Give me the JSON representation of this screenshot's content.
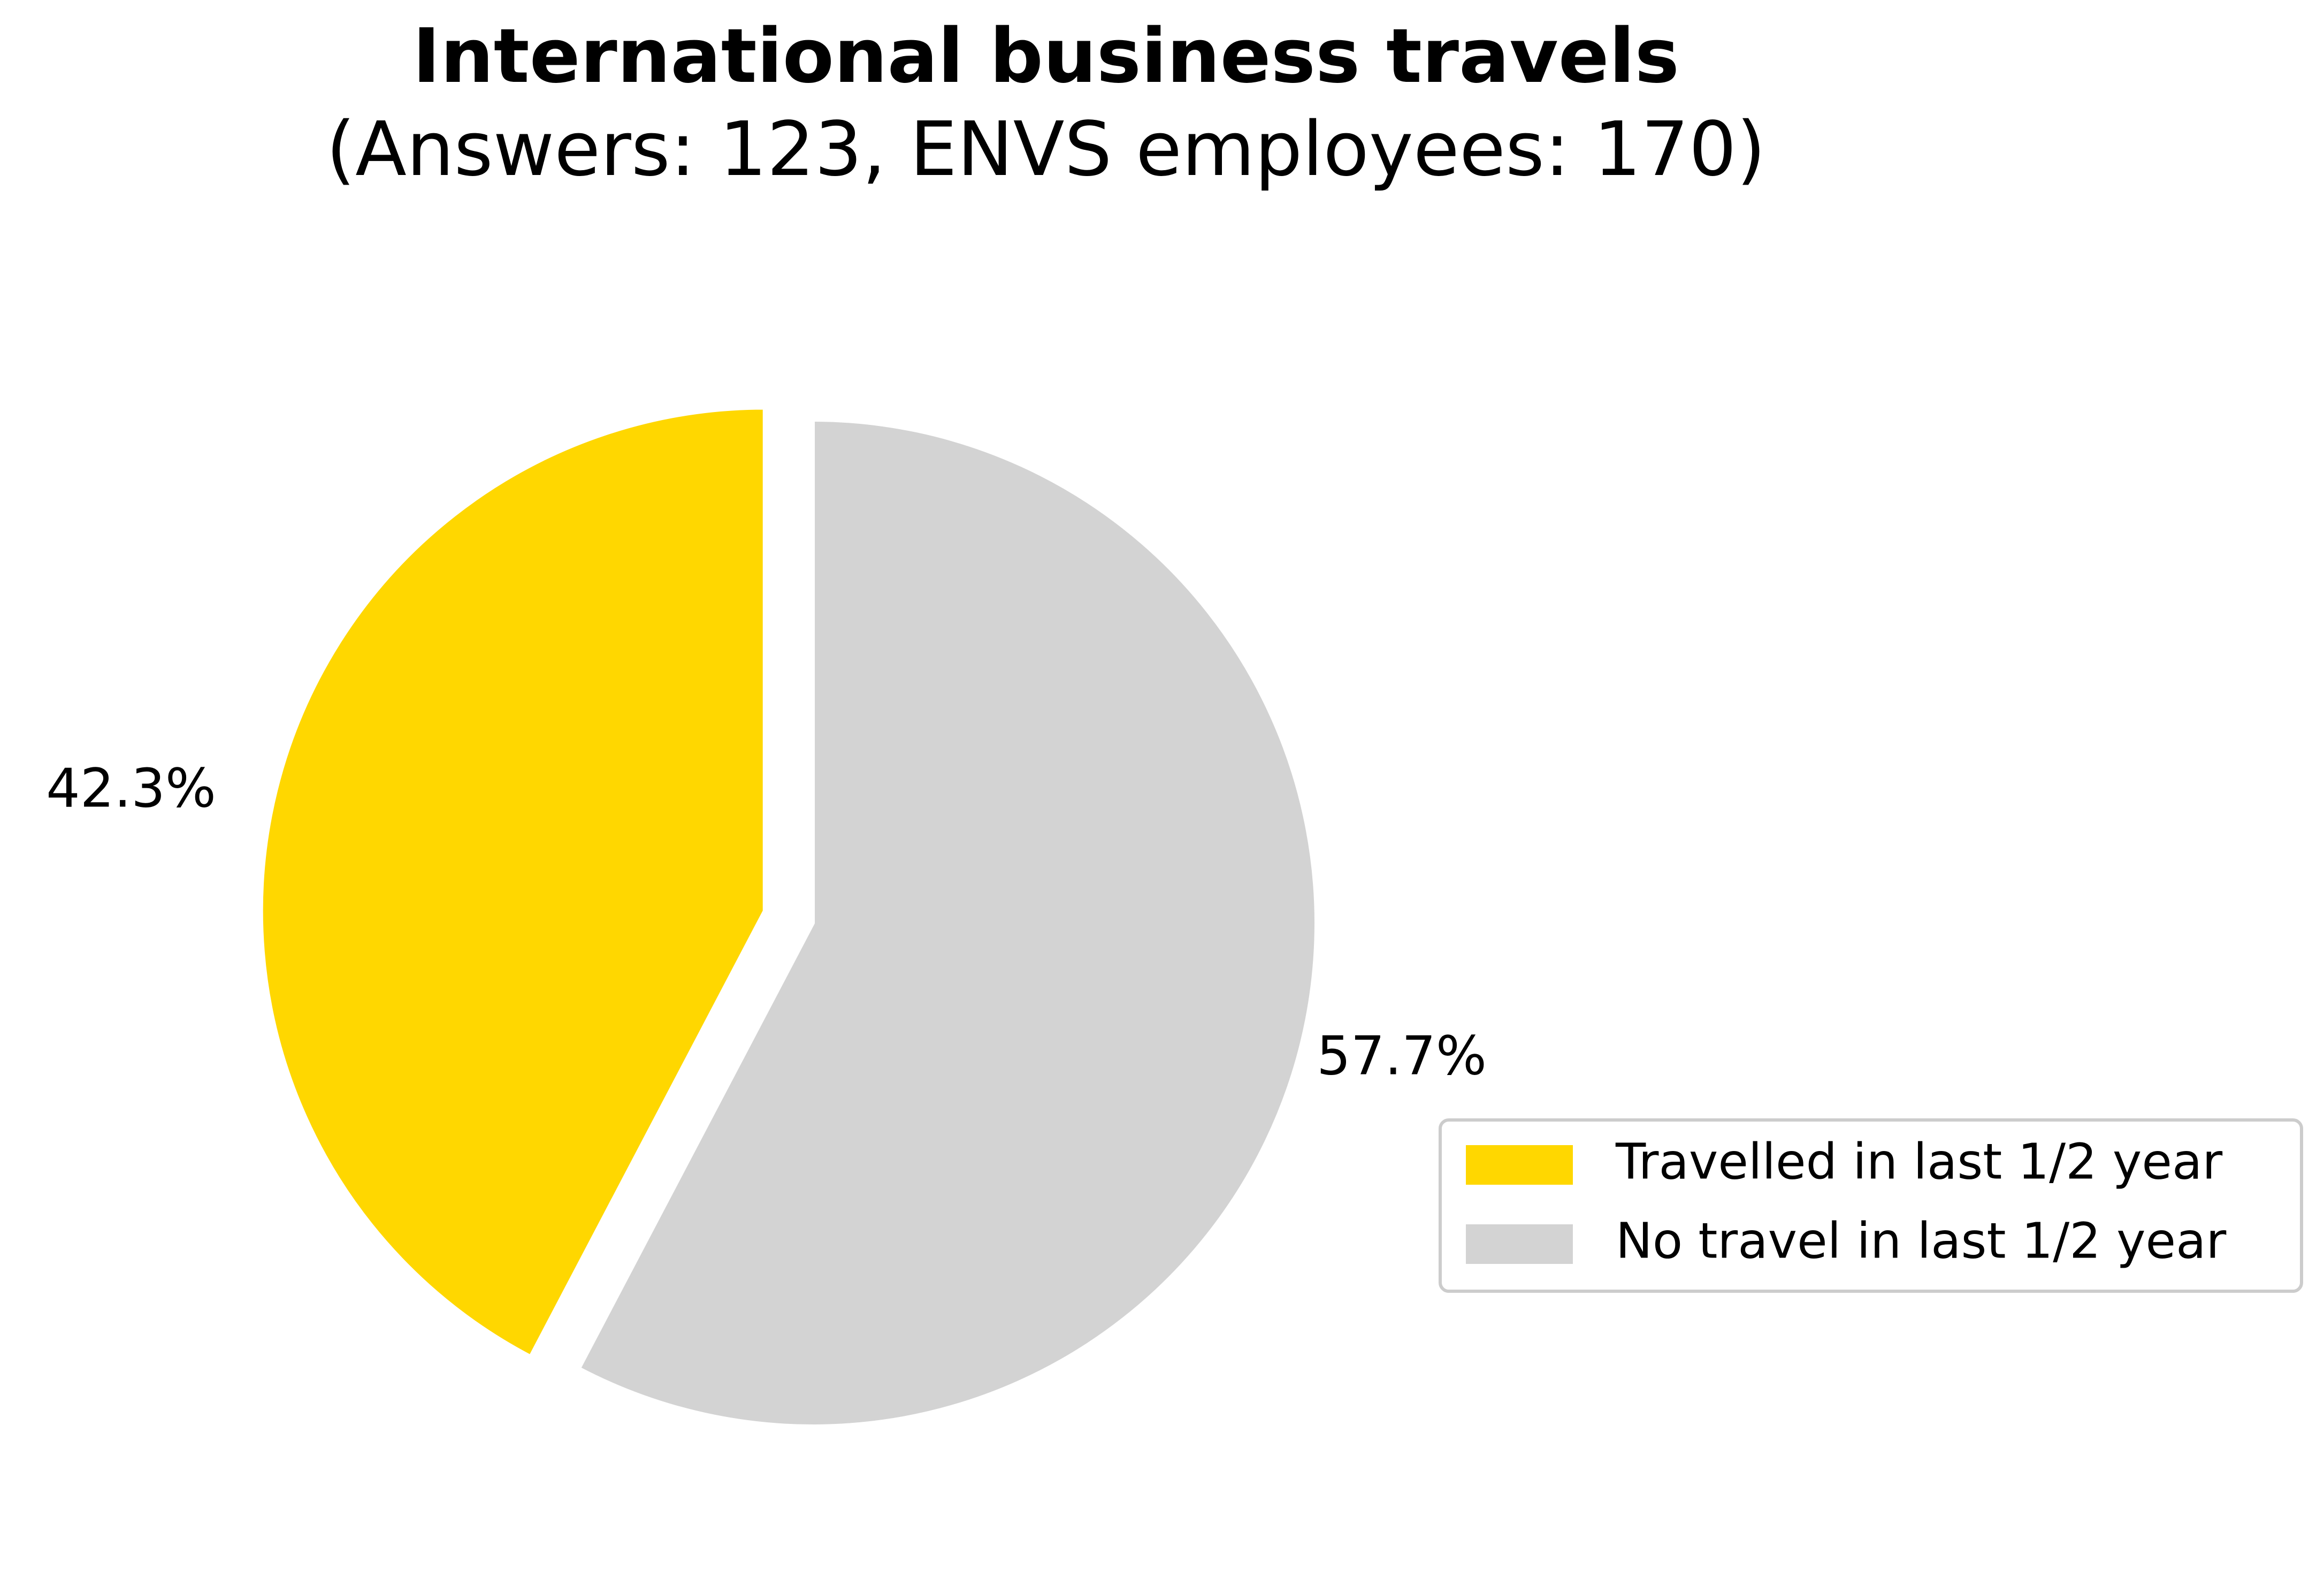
{
  "chart_data": {
    "type": "pie",
    "title": "International business travels",
    "subtitle": "(Answers: 123, ENVS employees: 170)",
    "slices": [
      {
        "label": "Travelled in last 1/2 year",
        "value": 42.3,
        "display": "42.3%",
        "color": "#FFD700",
        "exploded": true
      },
      {
        "label": "No travel in last 1/2 year",
        "value": 57.7,
        "display": "57.7%",
        "color": "#D3D3D3",
        "exploded": false
      }
    ],
    "start_angle_deg": 90,
    "direction": "counterclockwise",
    "legend": {
      "placement": "lower-right",
      "entries": [
        "Travelled in last 1/2 year",
        "No travel in last 1/2 year"
      ]
    }
  }
}
